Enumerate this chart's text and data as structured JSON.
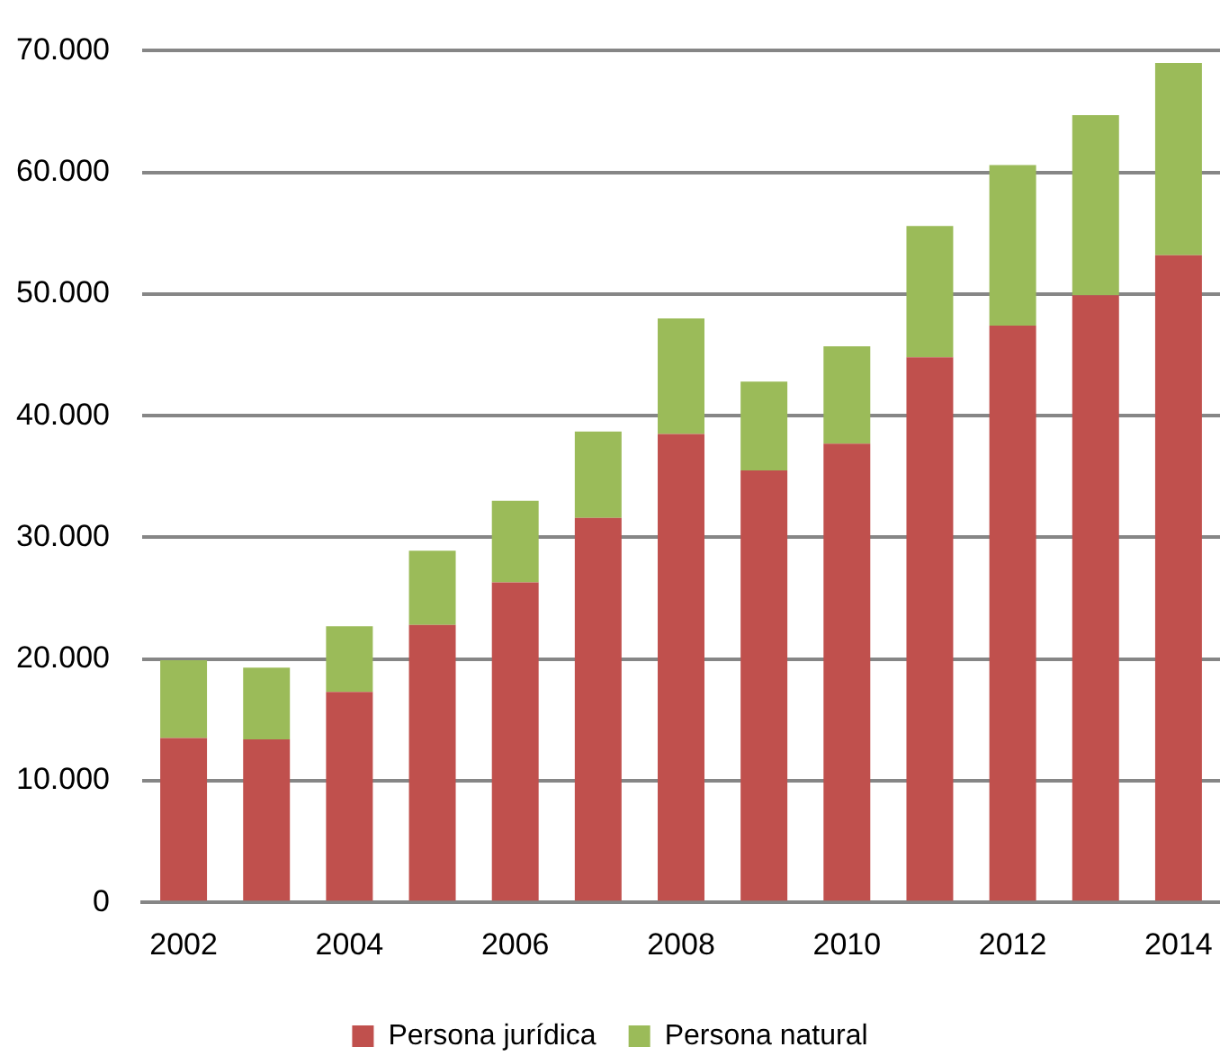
{
  "chart_data": {
    "type": "bar",
    "stacked": true,
    "categories": [
      "2002",
      null,
      "2004",
      null,
      "2006",
      null,
      "2008",
      null,
      "2010",
      null,
      "2012",
      null,
      "2014"
    ],
    "series": [
      {
        "name": "Persona jurídica",
        "color": "#c0504d",
        "values": [
          13500,
          13400,
          17300,
          22800,
          26300,
          31600,
          38500,
          35500,
          37700,
          44800,
          47400,
          49900,
          53200
        ]
      },
      {
        "name": "Persona natural",
        "color": "#9bbb59",
        "values": [
          6400,
          5900,
          5400,
          6100,
          6700,
          7100,
          9500,
          7300,
          8000,
          10800,
          13200,
          14800,
          15800
        ]
      }
    ],
    "ylim": [
      0,
      70000
    ],
    "yticks": [
      0,
      {
        "value": 10000,
        "label": "10.000"
      },
      {
        "value": 20000,
        "label": "20.000"
      },
      {
        "value": 30000,
        "label": "30.000"
      },
      {
        "value": 40000,
        "label": "40.000"
      },
      {
        "value": 50000,
        "label": "50.000"
      },
      {
        "value": 60000,
        "label": "60.000"
      },
      {
        "value": 70000,
        "label": "70.000"
      }
    ],
    "grid": "y",
    "legend": "bottom"
  }
}
